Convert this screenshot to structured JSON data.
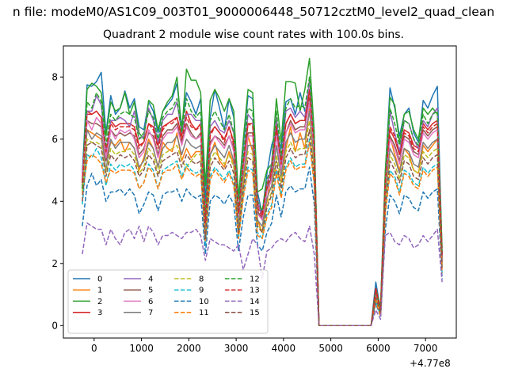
{
  "figure": {
    "suptitle": "n file: modeM0/AS1C09_003T01_9000006448_50712cztM0_level2_quad_clean",
    "offset_text": "+4.77e8"
  },
  "chart_data": {
    "type": "line",
    "title": "Quadrant 2 module wise count rates with 100.0s bins.",
    "xlabel": "",
    "ylabel": "",
    "xlim": [
      -650,
      7650
    ],
    "ylim": [
      -0.4,
      9.0
    ],
    "x_ticks": [
      0,
      1000,
      2000,
      3000,
      4000,
      5000,
      6000,
      7000
    ],
    "y_ticks": [
      0,
      2,
      4,
      6,
      8
    ],
    "grid": false,
    "legend": {
      "placement": "lower-left",
      "columns": 4
    },
    "x": [
      -250,
      -150,
      -50,
      50,
      150,
      250,
      350,
      450,
      550,
      650,
      750,
      850,
      950,
      1050,
      1150,
      1250,
      1350,
      1450,
      1550,
      1650,
      1750,
      1850,
      1950,
      2050,
      2150,
      2250,
      2350,
      2450,
      2550,
      2650,
      2750,
      2850,
      2950,
      3050,
      3150,
      3250,
      3350,
      3450,
      3550,
      3650,
      3750,
      3850,
      3950,
      4050,
      4150,
      4250,
      4350,
      4450,
      4550,
      4650,
      4750,
      4850,
      5850,
      5950,
      6050,
      6150,
      6250,
      6350,
      6450,
      6550,
      6650,
      6750,
      6850,
      6950,
      7050,
      7150,
      7250,
      7350
    ],
    "series": [
      {
        "name": "0",
        "color": "#1f77b4",
        "dash": "solid",
        "values": [
          4.9,
          7.75,
          7.7,
          7.85,
          8.15,
          6.2,
          7.4,
          6.8,
          7.0,
          7.55,
          7.0,
          7.3,
          6.4,
          6.3,
          7.2,
          6.9,
          6.2,
          6.9,
          7.1,
          7.3,
          7.8,
          6.4,
          7.5,
          7.2,
          6.8,
          7.3,
          4.0,
          6.7,
          7.6,
          7.0,
          6.3,
          7.3,
          6.7,
          4.1,
          5.8,
          7.4,
          7.3,
          4.3,
          3.6,
          4.9,
          5.8,
          6.3,
          5.7,
          7.2,
          7.3,
          6.8,
          7.5,
          6.9,
          7.1,
          6.0,
          0.0,
          0.0,
          0.0,
          1.4,
          0.5,
          4.9,
          7.65,
          7.0,
          6.1,
          6.8,
          7.0,
          6.2,
          5.9,
          7.25,
          7.0,
          7.4,
          7.7,
          2.3
        ]
      },
      {
        "name": "1",
        "color": "#ff7f0e",
        "dash": "solid",
        "values": [
          4.5,
          6.3,
          6.2,
          6.1,
          6.0,
          5.3,
          5.9,
          5.8,
          6.0,
          5.6,
          5.9,
          5.7,
          5.0,
          5.4,
          6.0,
          5.7,
          5.1,
          5.9,
          5.7,
          5.6,
          6.2,
          5.3,
          5.7,
          5.4,
          5.6,
          5.6,
          3.0,
          5.5,
          5.9,
          5.3,
          5.1,
          5.6,
          5.2,
          3.3,
          4.4,
          6.1,
          5.6,
          3.4,
          3.0,
          4.0,
          4.9,
          5.0,
          4.6,
          5.7,
          6.4,
          5.6,
          6.2,
          5.7,
          7.0,
          5.2,
          0.0,
          0.0,
          0.0,
          1.0,
          0.4,
          4.3,
          6.1,
          5.5,
          5.0,
          5.7,
          5.5,
          5.0,
          4.9,
          5.8,
          5.6,
          5.8,
          6.0,
          2.0
        ]
      },
      {
        "name": "2",
        "color": "#2ca02c",
        "dash": "solid",
        "values": [
          4.6,
          7.6,
          7.8,
          7.7,
          7.5,
          6.1,
          7.2,
          6.9,
          7.0,
          7.5,
          6.8,
          7.2,
          6.2,
          6.0,
          7.25,
          7.1,
          6.3,
          6.9,
          7.2,
          7.4,
          8.0,
          6.2,
          8.25,
          7.9,
          7.9,
          7.5,
          4.5,
          7.25,
          7.6,
          7.3,
          6.9,
          7.3,
          6.9,
          4.1,
          6.0,
          7.6,
          7.5,
          4.3,
          4.4,
          5.0,
          5.2,
          7.3,
          5.9,
          7.85,
          7.85,
          7.8,
          6.9,
          7.6,
          8.6,
          6.2,
          0.0,
          0.0,
          0.0,
          1.2,
          0.6,
          5.0,
          7.35,
          7.1,
          5.9,
          6.8,
          6.9,
          6.3,
          6.0,
          7.0,
          6.8,
          7.0,
          6.8,
          2.5
        ]
      },
      {
        "name": "3",
        "color": "#d62728",
        "dash": "solid",
        "values": [
          4.7,
          6.9,
          6.8,
          6.9,
          6.7,
          5.5,
          6.6,
          6.4,
          6.5,
          6.5,
          6.5,
          6.4,
          5.8,
          5.9,
          6.5,
          6.4,
          5.8,
          6.4,
          6.5,
          6.6,
          6.7,
          6.1,
          6.9,
          6.5,
          6.3,
          6.5,
          3.3,
          6.2,
          6.4,
          6.2,
          6.0,
          6.4,
          5.9,
          3.6,
          5.3,
          6.5,
          6.5,
          3.9,
          3.6,
          4.6,
          5.0,
          6.5,
          5.3,
          6.5,
          6.8,
          6.5,
          6.6,
          6.6,
          7.6,
          5.8,
          0.0,
          0.0,
          0.0,
          1.2,
          0.5,
          4.7,
          6.3,
          6.0,
          5.5,
          6.3,
          6.2,
          5.8,
          5.7,
          6.5,
          6.3,
          6.5,
          6.6,
          2.2
        ]
      },
      {
        "name": "4",
        "color": "#9467bd",
        "dash": "solid",
        "values": [
          4.6,
          6.9,
          6.9,
          7.4,
          7.1,
          5.6,
          6.6,
          6.6,
          6.7,
          6.6,
          6.4,
          6.9,
          6.0,
          6.1,
          7.0,
          6.6,
          5.9,
          6.6,
          6.8,
          6.8,
          7.2,
          6.2,
          6.8,
          6.8,
          6.6,
          6.6,
          3.5,
          6.4,
          6.6,
          6.3,
          6.2,
          6.6,
          6.2,
          3.7,
          5.3,
          6.8,
          6.6,
          4.1,
          3.4,
          4.5,
          5.2,
          6.7,
          5.3,
          6.9,
          7.0,
          6.7,
          6.9,
          6.7,
          7.9,
          5.9,
          0.0,
          0.0,
          0.0,
          1.0,
          0.5,
          4.6,
          6.9,
          6.2,
          5.6,
          6.6,
          6.5,
          6.0,
          5.7,
          6.6,
          6.4,
          6.8,
          7.0,
          2.2
        ]
      },
      {
        "name": "5",
        "color": "#8c564b",
        "dash": "solid",
        "values": [
          4.5,
          6.6,
          6.5,
          6.5,
          6.4,
          5.3,
          6.3,
          6.1,
          6.2,
          6.1,
          6.2,
          6.1,
          5.5,
          5.7,
          6.2,
          6.1,
          5.5,
          6.1,
          6.3,
          6.3,
          6.5,
          5.9,
          6.5,
          6.2,
          6.0,
          6.2,
          3.2,
          5.9,
          6.1,
          6.0,
          5.8,
          6.1,
          5.7,
          3.5,
          5.1,
          6.2,
          6.2,
          3.7,
          3.4,
          4.4,
          4.8,
          6.2,
          5.1,
          6.2,
          6.6,
          6.3,
          6.4,
          6.4,
          7.3,
          5.6,
          0.0,
          0.0,
          0.0,
          1.1,
          0.5,
          4.5,
          6.1,
          5.8,
          5.3,
          6.1,
          6.0,
          5.6,
          5.5,
          6.3,
          6.1,
          6.3,
          6.4,
          2.1
        ]
      },
      {
        "name": "6",
        "color": "#e377c2",
        "dash": "solid",
        "values": [
          4.8,
          6.6,
          6.3,
          6.7,
          6.5,
          5.4,
          6.3,
          6.0,
          6.3,
          6.2,
          6.3,
          6.0,
          5.4,
          5.6,
          6.3,
          6.0,
          5.4,
          6.0,
          6.2,
          6.2,
          6.4,
          5.8,
          6.4,
          6.1,
          6.0,
          6.1,
          3.1,
          5.8,
          6.1,
          5.9,
          5.7,
          6.1,
          5.6,
          3.4,
          5.0,
          6.1,
          6.1,
          3.6,
          3.4,
          4.3,
          4.7,
          6.1,
          5.0,
          6.2,
          6.5,
          6.2,
          6.3,
          6.3,
          7.2,
          5.5,
          0.0,
          0.0,
          0.0,
          1.0,
          0.4,
          4.4,
          6.0,
          5.7,
          5.2,
          6.0,
          5.9,
          5.5,
          5.4,
          6.2,
          6.0,
          6.2,
          6.3,
          2.1
        ]
      },
      {
        "name": "7",
        "color": "#7f7f7f",
        "dash": "solid",
        "values": [
          4.4,
          6.3,
          6.0,
          6.2,
          6.1,
          5.0,
          6.0,
          5.7,
          5.9,
          5.9,
          5.9,
          5.7,
          5.1,
          5.3,
          5.9,
          5.7,
          5.1,
          5.7,
          5.9,
          5.9,
          6.1,
          5.5,
          6.0,
          5.8,
          5.7,
          5.8,
          2.9,
          5.5,
          5.8,
          5.6,
          5.4,
          5.8,
          5.3,
          3.2,
          4.8,
          5.8,
          5.8,
          3.4,
          3.2,
          4.1,
          4.5,
          5.8,
          4.8,
          5.9,
          6.2,
          5.9,
          6.0,
          6.0,
          6.9,
          5.2,
          0.0,
          0.0,
          0.0,
          0.9,
          0.4,
          4.2,
          5.7,
          5.4,
          4.9,
          5.7,
          5.6,
          5.2,
          5.1,
          5.9,
          5.7,
          5.9,
          6.0,
          2.0
        ]
      },
      {
        "name": "8",
        "color": "#bcbd22",
        "dash": "dashed",
        "values": [
          4.3,
          6.0,
          5.9,
          5.9,
          5.8,
          4.9,
          5.7,
          5.5,
          5.6,
          5.6,
          5.7,
          5.5,
          4.9,
          5.1,
          5.7,
          5.5,
          4.9,
          5.5,
          5.6,
          5.7,
          5.8,
          5.3,
          5.1,
          5.3,
          5.5,
          5.5,
          2.8,
          5.3,
          5.6,
          5.4,
          5.2,
          5.5,
          5.1,
          3.0,
          4.6,
          5.6,
          5.5,
          3.3,
          3.0,
          3.9,
          4.3,
          5.5,
          4.6,
          5.6,
          5.9,
          5.6,
          5.7,
          5.7,
          6.6,
          5.0,
          0.0,
          0.0,
          0.0,
          0.9,
          0.4,
          4.0,
          5.5,
          5.2,
          4.7,
          5.5,
          5.4,
          5.0,
          4.9,
          5.6,
          5.4,
          5.6,
          5.7,
          1.9
        ]
      },
      {
        "name": "9",
        "color": "#17becf",
        "dash": "dashed",
        "values": [
          3.9,
          5.5,
          5.4,
          5.7,
          5.4,
          4.5,
          5.2,
          5.0,
          5.2,
          5.1,
          5.2,
          5.0,
          4.4,
          4.6,
          5.2,
          5.0,
          4.4,
          5.0,
          5.1,
          5.2,
          5.3,
          4.8,
          5.2,
          5.0,
          4.9,
          5.0,
          2.6,
          4.8,
          5.1,
          4.9,
          4.7,
          5.0,
          4.6,
          2.8,
          4.2,
          5.1,
          5.0,
          3.0,
          2.8,
          3.6,
          3.9,
          5.0,
          4.2,
          5.1,
          5.4,
          5.1,
          5.2,
          5.2,
          6.0,
          4.6,
          0.0,
          0.0,
          0.0,
          0.8,
          0.3,
          3.7,
          5.0,
          4.8,
          4.3,
          5.0,
          4.9,
          4.6,
          4.5,
          5.1,
          4.9,
          5.1,
          5.2,
          1.7
        ]
      },
      {
        "name": "10",
        "color": "#1f77b4",
        "dash": "dashed",
        "values": [
          3.2,
          4.5,
          4.9,
          4.5,
          4.7,
          4.0,
          4.3,
          4.3,
          4.4,
          4.2,
          4.4,
          4.2,
          3.6,
          3.9,
          4.3,
          4.2,
          3.7,
          4.2,
          4.3,
          4.3,
          4.4,
          4.0,
          4.4,
          4.2,
          4.1,
          4.2,
          2.3,
          4.0,
          4.2,
          4.1,
          3.9,
          4.2,
          3.9,
          2.4,
          3.5,
          4.2,
          4.2,
          2.6,
          2.4,
          3.0,
          3.3,
          4.2,
          3.5,
          4.3,
          4.5,
          4.3,
          4.4,
          4.4,
          5.1,
          3.9,
          0.0,
          0.0,
          0.0,
          0.7,
          0.3,
          3.1,
          4.2,
          4.0,
          3.6,
          4.2,
          4.1,
          3.8,
          3.7,
          4.3,
          4.1,
          4.3,
          4.4,
          1.5
        ]
      },
      {
        "name": "11",
        "color": "#ff7f0e",
        "dash": "dashed",
        "values": [
          4.2,
          5.3,
          5.5,
          5.4,
          5.2,
          4.6,
          5.0,
          4.9,
          5.0,
          5.0,
          5.0,
          4.9,
          4.4,
          4.6,
          5.1,
          4.9,
          4.4,
          4.9,
          5.0,
          5.0,
          5.2,
          4.7,
          5.1,
          4.9,
          4.8,
          4.9,
          2.7,
          4.7,
          5.0,
          4.8,
          4.6,
          4.9,
          4.5,
          2.8,
          4.1,
          5.0,
          4.9,
          2.9,
          2.8,
          3.5,
          3.8,
          4.9,
          4.1,
          5.0,
          5.3,
          5.0,
          5.1,
          5.1,
          5.9,
          4.5,
          0.0,
          0.0,
          0.0,
          0.8,
          0.3,
          3.6,
          4.9,
          4.7,
          4.2,
          4.9,
          4.8,
          4.5,
          4.4,
          5.0,
          4.8,
          5.0,
          5.1,
          1.7
        ]
      },
      {
        "name": "12",
        "color": "#2ca02c",
        "dash": "dashed",
        "values": [
          4.4,
          7.2,
          7.0,
          7.5,
          7.2,
          5.8,
          6.8,
          6.6,
          6.8,
          6.9,
          6.8,
          6.7,
          6.0,
          6.2,
          6.9,
          6.7,
          6.0,
          6.7,
          6.9,
          7.0,
          7.3,
          6.2,
          7.3,
          6.9,
          6.7,
          6.9,
          3.5,
          6.6,
          6.9,
          6.6,
          6.3,
          6.8,
          6.2,
          3.7,
          5.4,
          7.0,
          6.9,
          4.0,
          3.7,
          4.7,
          5.1,
          6.9,
          5.4,
          7.0,
          7.3,
          7.0,
          7.1,
          7.0,
          8.0,
          6.0,
          0.0,
          0.0,
          0.0,
          1.1,
          0.5,
          4.8,
          7.0,
          6.5,
          5.8,
          6.6,
          6.5,
          6.0,
          5.8,
          6.8,
          6.5,
          6.8,
          6.9,
          2.3
        ]
      },
      {
        "name": "13",
        "color": "#d62728",
        "dash": "dashed",
        "values": [
          4.6,
          6.8,
          6.8,
          6.9,
          6.7,
          5.6,
          6.5,
          6.3,
          6.4,
          6.4,
          6.4,
          6.3,
          5.7,
          5.9,
          6.5,
          6.3,
          5.7,
          6.3,
          6.5,
          6.5,
          6.7,
          6.0,
          6.7,
          6.4,
          6.3,
          6.4,
          3.3,
          6.1,
          6.4,
          6.2,
          5.9,
          6.4,
          5.8,
          3.6,
          5.2,
          6.5,
          6.4,
          3.8,
          3.5,
          4.5,
          4.9,
          6.4,
          5.2,
          6.5,
          6.8,
          6.5,
          6.6,
          6.6,
          7.5,
          5.7,
          0.0,
          0.0,
          0.0,
          1.1,
          0.5,
          4.6,
          6.4,
          6.1,
          5.5,
          6.2,
          6.1,
          5.7,
          5.6,
          6.4,
          6.2,
          6.4,
          6.5,
          2.2
        ]
      },
      {
        "name": "14",
        "color": "#9467bd",
        "dash": "dashed",
        "values": [
          2.3,
          3.3,
          3.2,
          3.1,
          3.1,
          2.6,
          3.1,
          2.8,
          2.6,
          3.0,
          3.1,
          2.8,
          3.2,
          2.7,
          3.2,
          3.0,
          2.6,
          2.9,
          2.9,
          3.0,
          2.9,
          2.8,
          3.0,
          3.0,
          3.1,
          2.9,
          2.1,
          2.8,
          2.7,
          2.6,
          2.6,
          2.5,
          2.4,
          2.6,
          1.8,
          2.3,
          2.8,
          2.6,
          1.5,
          2.4,
          2.5,
          2.7,
          2.8,
          2.7,
          2.9,
          3.0,
          2.8,
          2.7,
          3.2,
          2.3,
          0.0,
          0.0,
          0.0,
          0.5,
          0.2,
          2.9,
          3.0,
          2.7,
          2.6,
          2.9,
          2.8,
          2.5,
          2.6,
          2.9,
          2.7,
          2.9,
          3.1,
          1.4
        ]
      },
      {
        "name": "15",
        "color": "#8c564b",
        "dash": "dashed",
        "values": [
          4.0,
          5.8,
          5.9,
          5.8,
          5.7,
          4.8,
          5.5,
          5.3,
          5.5,
          5.4,
          5.5,
          5.3,
          4.8,
          5.0,
          5.5,
          5.3,
          4.8,
          5.3,
          5.4,
          5.5,
          5.6,
          5.1,
          5.5,
          5.3,
          5.2,
          5.3,
          2.8,
          5.1,
          5.4,
          5.2,
          5.0,
          5.3,
          4.9,
          3.0,
          4.4,
          5.4,
          5.3,
          3.2,
          3.0,
          3.8,
          4.2,
          5.3,
          4.4,
          5.4,
          5.7,
          5.4,
          5.5,
          5.5,
          6.3,
          4.8,
          0.0,
          0.0,
          0.0,
          0.9,
          0.4,
          3.9,
          5.3,
          5.0,
          4.6,
          5.3,
          5.2,
          4.8,
          4.7,
          5.4,
          5.2,
          5.4,
          5.5,
          1.8
        ]
      }
    ]
  }
}
